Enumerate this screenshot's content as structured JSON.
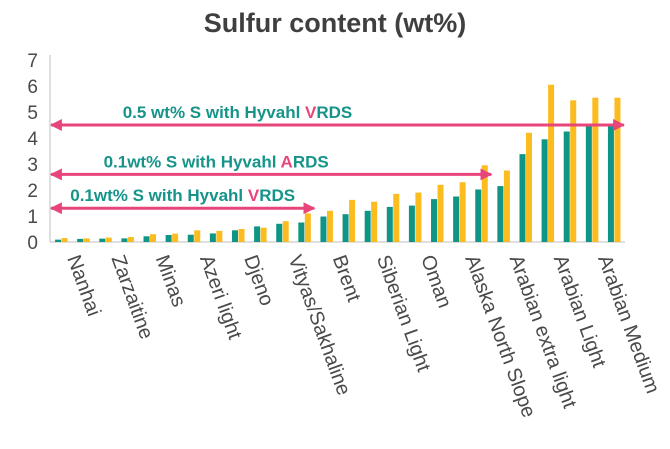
{
  "chart_data": {
    "type": "bar",
    "title": "Sulfur content (wt%)",
    "xlabel": "",
    "ylabel": "",
    "ylim": [
      0,
      7
    ],
    "yticks": [
      0,
      1,
      2,
      3,
      4,
      5,
      6,
      7
    ],
    "grid": false,
    "legend": "none",
    "colors": {
      "series_a": "#0f9585",
      "series_b": "#fbbc1f",
      "arrow": "#e8457b",
      "annotation": "#16948a"
    },
    "tick_labels": [
      "Nanhai",
      "Zarzaitine",
      "Minas",
      "Azeri light",
      "Djeno",
      "Vityas/Sakhaline",
      "Brent",
      "Siberian Light",
      "Oman",
      "Alaska North Slope",
      "Arabian extra light",
      "Arabian Light",
      "Arabian Medium"
    ],
    "categories": [
      "1",
      "2",
      "3",
      "4",
      "5",
      "6",
      "7",
      "8",
      "9",
      "10",
      "11",
      "12",
      "13",
      "14",
      "15",
      "16",
      "17",
      "18",
      "19",
      "20",
      "21",
      "22",
      "23",
      "24",
      "25",
      "26"
    ],
    "series": [
      {
        "values": [
          0.09,
          0.12,
          0.13,
          0.14,
          0.22,
          0.27,
          0.28,
          0.33,
          0.45,
          0.6,
          0.7,
          0.75,
          0.98,
          1.07,
          1.2,
          1.35,
          1.4,
          1.65,
          1.75,
          2.02,
          2.15,
          3.38,
          3.95,
          4.25,
          4.48,
          4.55
        ]
      },
      {
        "values": [
          0.15,
          0.14,
          0.17,
          0.19,
          0.3,
          0.32,
          0.45,
          0.43,
          0.5,
          0.55,
          0.8,
          1.1,
          1.2,
          1.62,
          1.55,
          1.85,
          1.9,
          2.2,
          2.3,
          2.95,
          2.75,
          4.2,
          6.05,
          5.45,
          5.55,
          5.55
        ]
      }
    ],
    "annotations": [
      {
        "pre": "0.5 wt% S with Hyvahl ",
        "highlight": "V",
        "post": "RDS",
        "y": 4.5,
        "x_start": 1,
        "x_end": 26
      },
      {
        "pre": "0.1wt% S with Hyvahl ",
        "highlight": "A",
        "post": "RDS",
        "y": 2.6,
        "x_start": 1,
        "x_end": 20
      },
      {
        "pre": "0.1wt% S with Hyvahl ",
        "highlight": "V",
        "post": "RDS",
        "y": 1.3,
        "x_start": 1,
        "x_end": 12
      }
    ]
  }
}
